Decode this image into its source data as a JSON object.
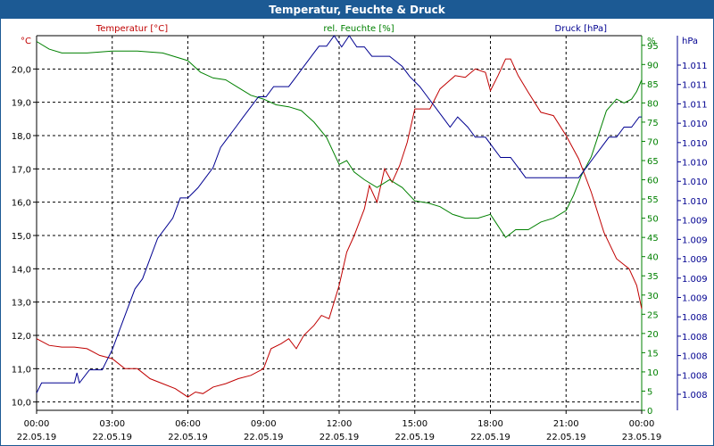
{
  "chart_data": {
    "type": "line",
    "title": "Temperatur, Feuchte & Druck",
    "x_ticks": [
      {
        "time": "00:00",
        "date": "22.05.19"
      },
      {
        "time": "03:00",
        "date": "22.05.19"
      },
      {
        "time": "06:00",
        "date": "22.05.19"
      },
      {
        "time": "09:00",
        "date": "22.05.19"
      },
      {
        "time": "12:00",
        "date": "22.05.19"
      },
      {
        "time": "15:00",
        "date": "22.05.19"
      },
      {
        "time": "18:00",
        "date": "22.05.19"
      },
      {
        "time": "21:00",
        "date": "22.05.19"
      },
      {
        "time": "00:00",
        "date": "23.05.19"
      }
    ],
    "x_range_hours": [
      0,
      24
    ],
    "grid": true,
    "axes": {
      "temperature": {
        "label": "Temperatur [°C]",
        "unit": "°C",
        "range": [
          9.75,
          21.0
        ],
        "ticks": [
          "10,0",
          "11,0",
          "12,0",
          "13,0",
          "14,0",
          "15,0",
          "16,0",
          "17,0",
          "18,0",
          "19,0",
          "20,0"
        ],
        "color": "#c00000"
      },
      "humidity": {
        "label": "rel. Feuchte [%]",
        "unit": "%",
        "range": [
          0,
          97.5
        ],
        "ticks": [
          "0",
          "5",
          "10",
          "15",
          "20",
          "25",
          "30",
          "35",
          "40",
          "45",
          "50",
          "55",
          "60",
          "65",
          "70",
          "75",
          "80",
          "85",
          "90",
          "95"
        ],
        "color": "#008000"
      },
      "pressure": {
        "label": "Druck [hPa]",
        "unit": "hPa",
        "range": [
          0,
          1
        ],
        "ticks": [
          "1.008",
          "1.008",
          "1.008",
          "1.008",
          "1.008",
          "1.009",
          "1.009",
          "1.009",
          "1.009",
          "1.009",
          "1.010",
          "1.010",
          "1.010",
          "1.010",
          "1.010",
          "1.011",
          "1.011",
          "1.011"
        ],
        "color": "#000090"
      }
    },
    "series": [
      {
        "name": "Temperatur [°C]",
        "axis": "temperature",
        "color": "#c00000",
        "points": [
          [
            0,
            11.9
          ],
          [
            0.5,
            11.7
          ],
          [
            1,
            11.65
          ],
          [
            1.5,
            11.65
          ],
          [
            2,
            11.6
          ],
          [
            2.5,
            11.4
          ],
          [
            3,
            11.3
          ],
          [
            3.5,
            11.0
          ],
          [
            4,
            11.0
          ],
          [
            4.5,
            10.7
          ],
          [
            5,
            10.55
          ],
          [
            5.5,
            10.4
          ],
          [
            6,
            10.15
          ],
          [
            6.3,
            10.3
          ],
          [
            6.6,
            10.25
          ],
          [
            7,
            10.45
          ],
          [
            7.5,
            10.55
          ],
          [
            8,
            10.7
          ],
          [
            8.5,
            10.8
          ],
          [
            9,
            11.0
          ],
          [
            9.3,
            11.6
          ],
          [
            9.7,
            11.75
          ],
          [
            10,
            11.9
          ],
          [
            10.3,
            11.6
          ],
          [
            10.6,
            12.0
          ],
          [
            11,
            12.3
          ],
          [
            11.3,
            12.6
          ],
          [
            11.6,
            12.5
          ],
          [
            12,
            13.5
          ],
          [
            12.3,
            14.5
          ],
          [
            12.6,
            15.0
          ],
          [
            13,
            15.8
          ],
          [
            13.2,
            16.5
          ],
          [
            13.5,
            16.0
          ],
          [
            13.8,
            17.0
          ],
          [
            14.1,
            16.6
          ],
          [
            14.4,
            17.1
          ],
          [
            14.7,
            17.8
          ],
          [
            15,
            18.8
          ],
          [
            15.3,
            18.8
          ],
          [
            15.6,
            18.8
          ],
          [
            16,
            19.4
          ],
          [
            16.3,
            19.6
          ],
          [
            16.6,
            19.8
          ],
          [
            17,
            19.75
          ],
          [
            17.4,
            20.0
          ],
          [
            17.8,
            19.9
          ],
          [
            18,
            19.35
          ],
          [
            18.3,
            19.8
          ],
          [
            18.6,
            20.3
          ],
          [
            18.8,
            20.3
          ],
          [
            19.1,
            19.8
          ],
          [
            19.5,
            19.3
          ],
          [
            20,
            18.7
          ],
          [
            20.5,
            18.6
          ],
          [
            21,
            18.0
          ],
          [
            21.5,
            17.3
          ],
          [
            22,
            16.3
          ],
          [
            22.5,
            15.1
          ],
          [
            23,
            14.3
          ],
          [
            23.5,
            14.0
          ],
          [
            23.8,
            13.5
          ],
          [
            24,
            12.8
          ]
        ]
      },
      {
        "name": "rel. Feuchte [%]",
        "axis": "humidity",
        "color": "#008000",
        "points": [
          [
            0,
            96
          ],
          [
            0.5,
            94
          ],
          [
            1,
            93
          ],
          [
            2,
            93
          ],
          [
            3,
            93.5
          ],
          [
            4,
            93.5
          ],
          [
            5,
            93
          ],
          [
            6,
            91
          ],
          [
            6.5,
            88
          ],
          [
            7,
            86.5
          ],
          [
            7.5,
            86
          ],
          [
            8,
            84
          ],
          [
            8.5,
            82
          ],
          [
            9,
            81
          ],
          [
            9.5,
            79.5
          ],
          [
            10,
            79
          ],
          [
            10.5,
            78
          ],
          [
            11,
            75
          ],
          [
            11.5,
            71
          ],
          [
            12,
            64
          ],
          [
            12.3,
            65
          ],
          [
            12.6,
            62
          ],
          [
            13,
            60
          ],
          [
            13.5,
            58
          ],
          [
            14,
            60
          ],
          [
            14.5,
            58
          ],
          [
            15,
            54.5
          ],
          [
            15.5,
            54
          ],
          [
            16,
            53
          ],
          [
            16.5,
            51
          ],
          [
            17,
            50
          ],
          [
            17.5,
            50
          ],
          [
            18,
            51
          ],
          [
            18.3,
            48
          ],
          [
            18.6,
            45
          ],
          [
            19,
            47
          ],
          [
            19.5,
            47
          ],
          [
            20,
            49
          ],
          [
            20.5,
            50
          ],
          [
            21,
            52
          ],
          [
            21.3,
            56
          ],
          [
            21.6,
            61
          ],
          [
            22,
            66
          ],
          [
            22.3,
            72
          ],
          [
            22.6,
            78
          ],
          [
            23,
            81
          ],
          [
            23.3,
            80
          ],
          [
            23.6,
            81
          ],
          [
            23.8,
            83
          ],
          [
            24,
            86
          ]
        ]
      },
      {
        "name": "Druck [hPa]",
        "axis": "pressure",
        "color": "#000090",
        "points": [
          [
            0,
            0.046
          ],
          [
            0.2,
            0.073
          ],
          [
            1.5,
            0.073
          ],
          [
            1.6,
            0.1
          ],
          [
            1.7,
            0.073
          ],
          [
            2.1,
            0.108
          ],
          [
            2.6,
            0.108
          ],
          [
            2.8,
            0.135
          ],
          [
            3,
            0.162
          ],
          [
            3.3,
            0.216
          ],
          [
            3.6,
            0.27
          ],
          [
            3.9,
            0.324
          ],
          [
            4.2,
            0.351
          ],
          [
            4.5,
            0.405
          ],
          [
            4.8,
            0.459
          ],
          [
            5.1,
            0.486
          ],
          [
            5.4,
            0.513
          ],
          [
            5.7,
            0.567
          ],
          [
            6,
            0.567
          ],
          [
            6.4,
            0.594
          ],
          [
            6.7,
            0.621
          ],
          [
            7,
            0.648
          ],
          [
            7.3,
            0.702
          ],
          [
            7.6,
            0.729
          ],
          [
            7.9,
            0.756
          ],
          [
            8.2,
            0.783
          ],
          [
            8.5,
            0.81
          ],
          [
            8.8,
            0.837
          ],
          [
            9.1,
            0.837
          ],
          [
            9.4,
            0.864
          ],
          [
            9.7,
            0.864
          ],
          [
            10,
            0.864
          ],
          [
            10.3,
            0.891
          ],
          [
            10.6,
            0.918
          ],
          [
            10.9,
            0.945
          ],
          [
            11.2,
            0.972
          ],
          [
            11.5,
            0.972
          ],
          [
            11.8,
            1.0
          ],
          [
            12.1,
            0.97
          ],
          [
            12.4,
            1.0
          ],
          [
            12.7,
            0.97
          ],
          [
            13,
            0.97
          ],
          [
            13.3,
            0.945
          ],
          [
            13.6,
            0.945
          ],
          [
            14,
            0.945
          ],
          [
            14.5,
            0.918
          ],
          [
            14.8,
            0.891
          ],
          [
            15.2,
            0.864
          ],
          [
            15.5,
            0.837
          ],
          [
            15.8,
            0.81
          ],
          [
            16.1,
            0.783
          ],
          [
            16.4,
            0.756
          ],
          [
            16.7,
            0.783
          ],
          [
            17.1,
            0.756
          ],
          [
            17.4,
            0.729
          ],
          [
            17.8,
            0.729
          ],
          [
            18.1,
            0.702
          ],
          [
            18.4,
            0.675
          ],
          [
            18.8,
            0.675
          ],
          [
            19.1,
            0.648
          ],
          [
            19.4,
            0.621
          ],
          [
            19.7,
            0.621
          ],
          [
            20.5,
            0.621
          ],
          [
            21.5,
            0.621
          ],
          [
            21.8,
            0.648
          ],
          [
            22.1,
            0.675
          ],
          [
            22.4,
            0.702
          ],
          [
            22.7,
            0.729
          ],
          [
            23,
            0.729
          ],
          [
            23.3,
            0.756
          ],
          [
            23.6,
            0.756
          ],
          [
            23.9,
            0.783
          ],
          [
            24,
            0.783
          ]
        ]
      }
    ]
  }
}
